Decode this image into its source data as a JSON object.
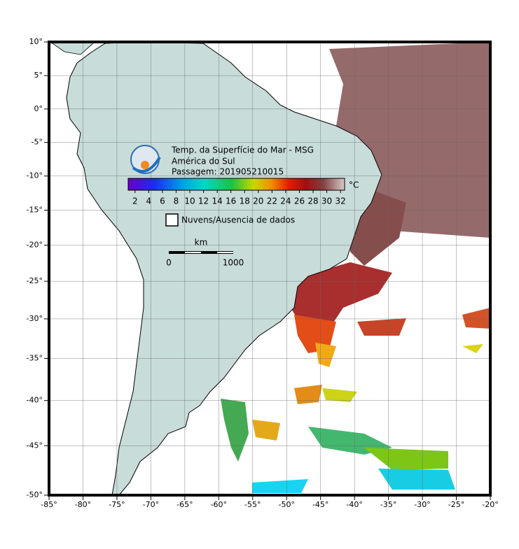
{
  "map": {
    "title": "Temp. da Superfície do Mar - MSG",
    "subtitle": "América do Sul",
    "pass": "Passagem: 201905210015",
    "colorbar": {
      "range": [
        1,
        32.6
      ],
      "ticks": [
        2,
        4,
        6,
        8,
        10,
        12,
        14,
        16,
        18,
        20,
        22,
        24,
        26,
        28,
        30,
        32
      ],
      "unit": "°C"
    },
    "legend": "Nuvens/Ausencia de dados",
    "scale_bar": {
      "unit": "km",
      "ticks": [
        0,
        1000
      ]
    },
    "lonlim": [
      -85,
      -20
    ],
    "latlim": [
      -50,
      10
    ],
    "lon_ticks": [
      {
        "value": -85,
        "label": "-85°"
      },
      {
        "value": -80,
        "label": "-80°"
      },
      {
        "value": -75,
        "label": "-75°"
      },
      {
        "value": -70,
        "label": "-70°"
      },
      {
        "value": -65,
        "label": "-65°"
      },
      {
        "value": -60,
        "label": "-60°"
      },
      {
        "value": -55,
        "label": "-55°"
      },
      {
        "value": -50,
        "label": "-50°"
      },
      {
        "value": -45,
        "label": "-45°"
      },
      {
        "value": -40,
        "label": "-40°"
      },
      {
        "value": -35,
        "label": "-35°"
      },
      {
        "value": -30,
        "label": "-30°"
      },
      {
        "value": -25,
        "label": "-25°"
      },
      {
        "value": -20,
        "label": "-20°"
      }
    ],
    "lat_ticks": [
      {
        "value": 10,
        "label": "10°"
      },
      {
        "value": 5,
        "label": "5°"
      },
      {
        "value": 0,
        "label": "0°"
      },
      {
        "value": -5,
        "label": "-5°"
      },
      {
        "value": -10,
        "label": "-10°"
      },
      {
        "value": -15,
        "label": "-15°"
      },
      {
        "value": -20,
        "label": "-20°"
      },
      {
        "value": -25,
        "label": "-25°"
      },
      {
        "value": -30,
        "label": "-30°"
      },
      {
        "value": -35,
        "label": "-35°"
      },
      {
        "value": -40,
        "label": "-40°"
      },
      {
        "value": -45,
        "label": "-45°"
      },
      {
        "value": -50,
        "label": "-50°"
      }
    ]
  }
}
